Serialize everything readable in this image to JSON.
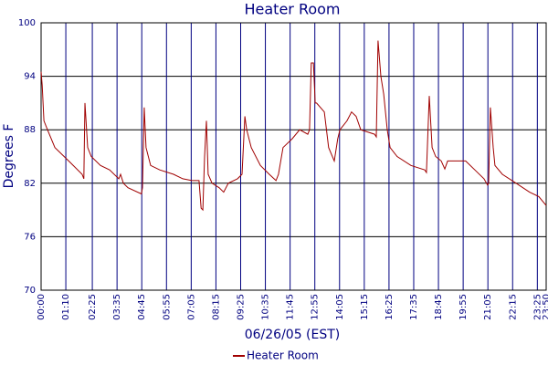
{
  "chart_data": {
    "type": "line",
    "title": "Heater Room",
    "x_label": "06/26/05 (EST)",
    "y_label": "Degrees F",
    "x": [
      0,
      3,
      8,
      18,
      39,
      78,
      116,
      121,
      124,
      132,
      142,
      168,
      194,
      220,
      225,
      233,
      246,
      284,
      287,
      292,
      297,
      310,
      336,
      375,
      401,
      427,
      447,
      453,
      458,
      463,
      468,
      473,
      484,
      504,
      517,
      530,
      556,
      569,
      577,
      582,
      595,
      621,
      646,
      665,
      672,
      685,
      711,
      732,
      755,
      760,
      765,
      771,
      776,
      780,
      802,
      814,
      830,
      840,
      846,
      866,
      879,
      892,
      905,
      944,
      949,
      954,
      962,
      970,
      980,
      988,
      1008,
      1047,
      1086,
      1091,
      1099,
      1107,
      1117,
      1133,
      1143,
      1151,
      1202,
      1228,
      1254,
      1264,
      1267,
      1272,
      1280,
      1285,
      1306,
      1345,
      1383,
      1409,
      1430
    ],
    "series": [
      {
        "name": "Heater Room",
        "color": "#a00000",
        "values": [
          94.5,
          93,
          89,
          88,
          86,
          84.5,
          83,
          82.5,
          91,
          86,
          85,
          84,
          83.5,
          82.5,
          83,
          82,
          81.5,
          80.8,
          81.5,
          90.5,
          86,
          84,
          83.5,
          83,
          82.5,
          82.3,
          82.3,
          79.2,
          79,
          85,
          89,
          83,
          82,
          81.5,
          81,
          82,
          82.5,
          83,
          89.5,
          88,
          86,
          84,
          83,
          82.3,
          83,
          86,
          87,
          88,
          87.5,
          88,
          95.5,
          95.5,
          91,
          91,
          90,
          86,
          84.5,
          87,
          88,
          89,
          90,
          89.5,
          88,
          87.5,
          87.2,
          98,
          94,
          92,
          88,
          86,
          85,
          84,
          83.5,
          83.2,
          91.8,
          86,
          85,
          84.5,
          83.6,
          84.5,
          84.5,
          83.5,
          82.5,
          81.8,
          82,
          90.5,
          86,
          84,
          83,
          82,
          81,
          80.5,
          79.5
        ]
      }
    ],
    "xlim": [
      0,
      1430
    ],
    "xticks": [
      {
        "value": 0,
        "label": "00:00"
      },
      {
        "value": 70,
        "label": "01:10"
      },
      {
        "value": 145,
        "label": "02:25"
      },
      {
        "value": 215,
        "label": "03:35"
      },
      {
        "value": 285,
        "label": "04:45"
      },
      {
        "value": 355,
        "label": "05:55"
      },
      {
        "value": 425,
        "label": "07:05"
      },
      {
        "value": 495,
        "label": "08:15"
      },
      {
        "value": 565,
        "label": "09:25"
      },
      {
        "value": 635,
        "label": "10:35"
      },
      {
        "value": 705,
        "label": "11:45"
      },
      {
        "value": 775,
        "label": "12:55"
      },
      {
        "value": 845,
        "label": "14:05"
      },
      {
        "value": 915,
        "label": "15:15"
      },
      {
        "value": 985,
        "label": "16:25"
      },
      {
        "value": 1055,
        "label": "17:35"
      },
      {
        "value": 1125,
        "label": "18:45"
      },
      {
        "value": 1195,
        "label": "19:55"
      },
      {
        "value": 1265,
        "label": "21:05"
      },
      {
        "value": 1335,
        "label": "22:15"
      },
      {
        "value": 1405,
        "label": "23:25"
      },
      {
        "value": 1430,
        "label": "23:50"
      }
    ],
    "ylim": [
      70,
      100
    ],
    "yticks": [
      70,
      76,
      82,
      88,
      94,
      100
    ],
    "grid": true
  }
}
